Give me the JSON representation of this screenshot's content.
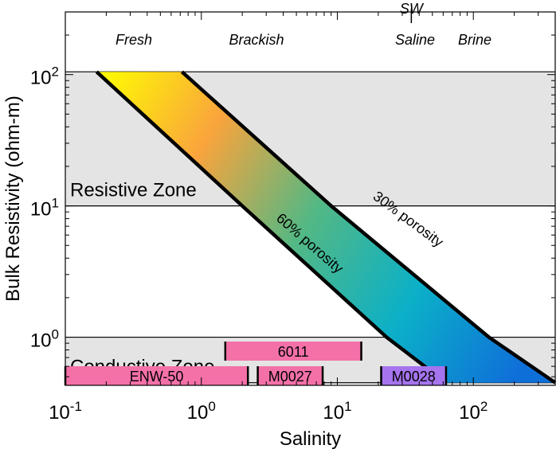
{
  "chart_data": {
    "type": "area",
    "xlabel": "Salinity",
    "ylabel": "Bulk Resistivity (ohm-m)",
    "xscale": "log",
    "yscale": "log",
    "xlim": [
      0.1,
      400
    ],
    "ylim": [
      0.43,
      300
    ],
    "x_ticks": [
      {
        "value": 0.1,
        "base": "10",
        "exp": "-1"
      },
      {
        "value": 1,
        "base": "10",
        "exp": "0"
      },
      {
        "value": 10,
        "base": "10",
        "exp": "1"
      },
      {
        "value": 100,
        "base": "10",
        "exp": "2"
      }
    ],
    "y_ticks": [
      {
        "value": 1,
        "base": "10",
        "exp": "0"
      },
      {
        "value": 10,
        "base": "10",
        "exp": "1"
      },
      {
        "value": 100,
        "base": "10",
        "exp": "2"
      }
    ],
    "salinity_classes": [
      "Fresh",
      "Brackish",
      "Saline",
      "Brine"
    ],
    "sw_marker": {
      "label": "SW",
      "x": 35
    },
    "zones": [
      {
        "label": "Resistive Zone",
        "ymin": 10,
        "ymax": 105
      },
      {
        "label": "Conductive Zone",
        "ymin": 0.45,
        "ymax": 1
      }
    ],
    "series": [
      {
        "name": "30% porosity",
        "points": [
          [
            0.72,
            105
          ],
          [
            9,
            10
          ],
          [
            130,
            1
          ],
          [
            400,
            0.45
          ]
        ]
      },
      {
        "name": "60% porosity",
        "points": [
          [
            0.17,
            105
          ],
          [
            2,
            10
          ],
          [
            23,
            1
          ],
          [
            63,
            0.45
          ]
        ]
      }
    ],
    "ranges": [
      {
        "label": "6011",
        "xmin": 1.5,
        "xmax": 15,
        "row": 0,
        "color": "#f471a8"
      },
      {
        "label": "ENW-50",
        "xmin": 0.1,
        "xmax": 2.2,
        "row": 1,
        "color": "#f471a8"
      },
      {
        "label": "M0027",
        "xmin": 2.6,
        "xmax": 7.8,
        "row": 1,
        "color": "#f471a8"
      },
      {
        "label": "M0028",
        "xmin": 21,
        "xmax": 63,
        "row": 1,
        "color": "#a574ee"
      }
    ],
    "gradient_colors": [
      "#ffff00",
      "#f9a43c",
      "#53b884",
      "#0bb0c8",
      "#0f6fd9"
    ],
    "zone_fill": "#e4e4e4",
    "grid": false
  }
}
